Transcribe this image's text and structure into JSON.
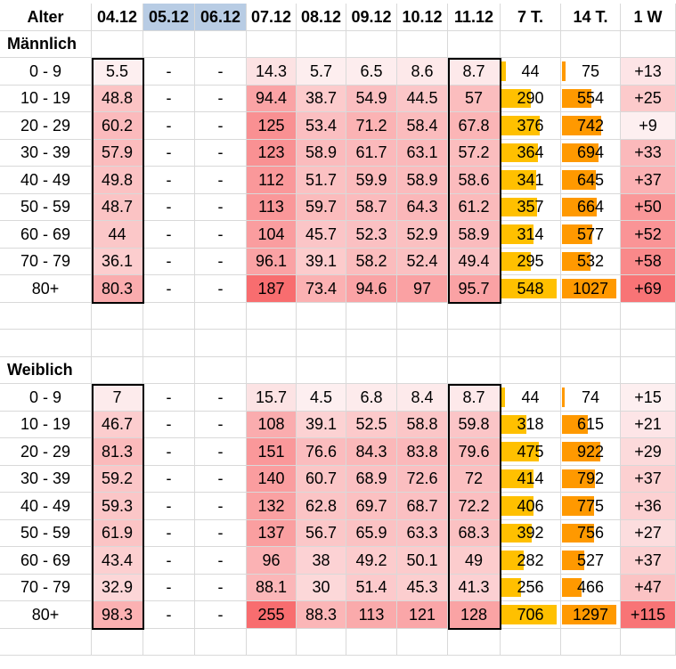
{
  "header": {
    "age_label": "Alter",
    "columns": [
      "04.12",
      "05.12",
      "06.12",
      "07.12",
      "08.12",
      "09.12",
      "10.12",
      "11.12",
      "7 T.",
      "14 T.",
      "1 W"
    ],
    "selected_columns": [
      "05.12",
      "06.12"
    ]
  },
  "sections": [
    {
      "title": "Männlich",
      "rows": [
        {
          "age": "0 - 9",
          "cells": [
            "5.5",
            "-",
            "-",
            "14.3",
            "5.7",
            "6.5",
            "8.6",
            "8.7",
            "44",
            "75",
            "+13"
          ]
        },
        {
          "age": "10 - 19",
          "cells": [
            "48.8",
            "-",
            "-",
            "94.4",
            "38.7",
            "54.9",
            "44.5",
            "57",
            "290",
            "554",
            "+25"
          ]
        },
        {
          "age": "20 - 29",
          "cells": [
            "60.2",
            "-",
            "-",
            "125",
            "53.4",
            "71.2",
            "58.4",
            "67.8",
            "376",
            "742",
            "+9"
          ]
        },
        {
          "age": "30 - 39",
          "cells": [
            "57.9",
            "-",
            "-",
            "123",
            "58.9",
            "61.7",
            "63.1",
            "57.2",
            "364",
            "694",
            "+33"
          ]
        },
        {
          "age": "40 - 49",
          "cells": [
            "49.8",
            "-",
            "-",
            "112",
            "51.7",
            "59.9",
            "58.9",
            "58.6",
            "341",
            "645",
            "+37"
          ]
        },
        {
          "age": "50 - 59",
          "cells": [
            "48.7",
            "-",
            "-",
            "113",
            "59.7",
            "58.7",
            "64.3",
            "61.2",
            "357",
            "664",
            "+50"
          ]
        },
        {
          "age": "60 - 69",
          "cells": [
            "44",
            "-",
            "-",
            "104",
            "45.7",
            "52.3",
            "52.9",
            "58.9",
            "314",
            "577",
            "+52"
          ]
        },
        {
          "age": "70 - 79",
          "cells": [
            "36.1",
            "-",
            "-",
            "96.1",
            "39.1",
            "58.2",
            "52.4",
            "49.4",
            "295",
            "532",
            "+58"
          ]
        },
        {
          "age": "80+",
          "cells": [
            "80.3",
            "-",
            "-",
            "187",
            "73.4",
            "94.6",
            "97",
            "95.7",
            "548",
            "1027",
            "+69"
          ]
        }
      ]
    },
    {
      "title": "Weiblich",
      "rows": [
        {
          "age": "0 - 9",
          "cells": [
            "7",
            "-",
            "-",
            "15.7",
            "4.5",
            "6.8",
            "8.4",
            "8.7",
            "44",
            "74",
            "+15"
          ]
        },
        {
          "age": "10 - 19",
          "cells": [
            "46.7",
            "-",
            "-",
            "108",
            "39.1",
            "52.5",
            "58.8",
            "59.8",
            "318",
            "615",
            "+21"
          ]
        },
        {
          "age": "20 - 29",
          "cells": [
            "81.3",
            "-",
            "-",
            "151",
            "76.6",
            "84.3",
            "83.8",
            "79.6",
            "475",
            "922",
            "+29"
          ]
        },
        {
          "age": "30 - 39",
          "cells": [
            "59.2",
            "-",
            "-",
            "140",
            "60.7",
            "68.9",
            "72.6",
            "72",
            "414",
            "792",
            "+37"
          ]
        },
        {
          "age": "40 - 49",
          "cells": [
            "59.3",
            "-",
            "-",
            "132",
            "62.8",
            "69.7",
            "68.7",
            "72.2",
            "406",
            "775",
            "+36"
          ]
        },
        {
          "age": "50 - 59",
          "cells": [
            "61.9",
            "-",
            "-",
            "137",
            "56.7",
            "65.9",
            "63.3",
            "68.3",
            "392",
            "756",
            "+27"
          ]
        },
        {
          "age": "60 - 69",
          "cells": [
            "43.4",
            "-",
            "-",
            "96",
            "38",
            "49.2",
            "50.1",
            "49",
            "282",
            "527",
            "+37"
          ]
        },
        {
          "age": "70 - 79",
          "cells": [
            "32.9",
            "-",
            "-",
            "88.1",
            "30",
            "51.4",
            "45.3",
            "41.3",
            "256",
            "466",
            "+47"
          ]
        },
        {
          "age": "80+",
          "cells": [
            "98.3",
            "-",
            "-",
            "255",
            "88.3",
            "113",
            "121",
            "128",
            "706",
            "1297",
            "+115"
          ]
        }
      ]
    }
  ],
  "colors": {
    "heat_low": "#fdf2f3",
    "heat_high": "#f8696b",
    "bar_7t": "#ffc000",
    "bar_14t": "#ff9900",
    "header_selected": "#b8cce4",
    "gridline": "#d9d9d9"
  }
}
